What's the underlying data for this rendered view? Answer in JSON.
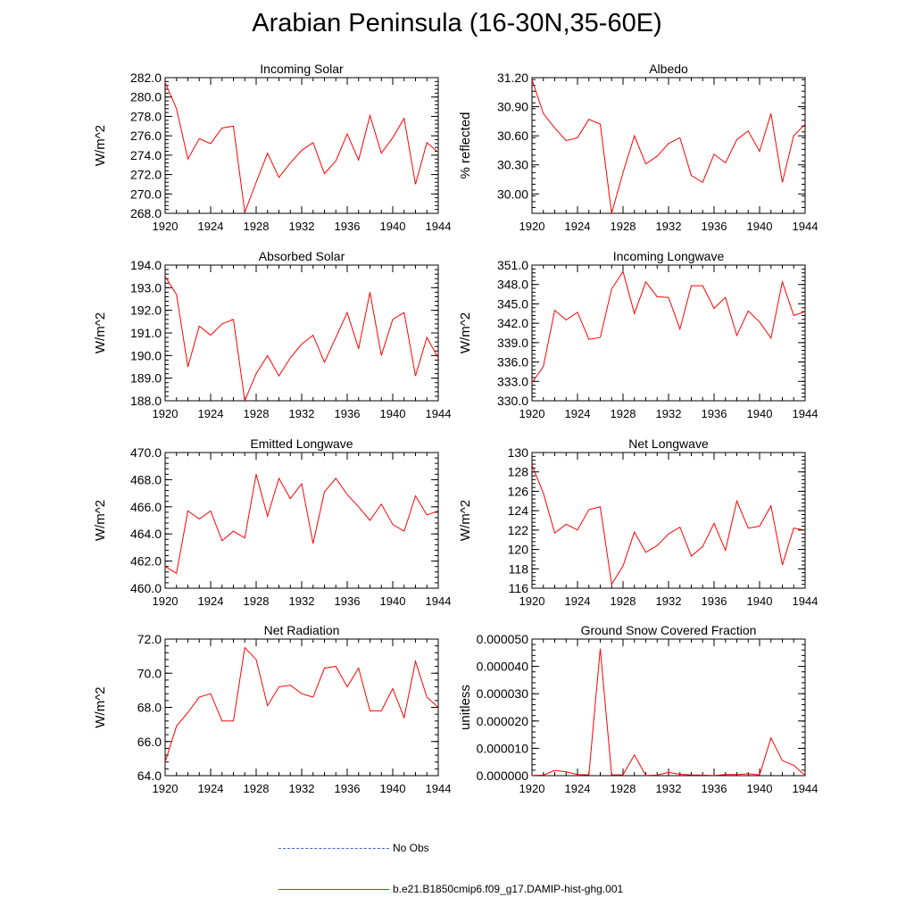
{
  "figure_title": "Arabian Peninsula (16-30N,35-60E)",
  "colors": {
    "series": "#ff0000",
    "obs": "#4a5fd0"
  },
  "legend": {
    "obs_label": "No Obs",
    "model_label": "b.e21.B1850cmip6.f09_g17.DAMIP-hist-ghg.001"
  },
  "chart_data": [
    {
      "type": "line",
      "title": "Incoming Solar",
      "ylabel": "W/m^2",
      "xlabel": "",
      "xlim": [
        1920,
        1944
      ],
      "ylim": [
        268,
        282
      ],
      "xticks": [
        "1920",
        "1924",
        "1928",
        "1932",
        "1936",
        "1940",
        "1944"
      ],
      "yticks": [
        "268.0",
        "270.0",
        "272.0",
        "274.0",
        "276.0",
        "278.0",
        "280.0",
        "282.0"
      ],
      "x": [
        1920,
        1921,
        1922,
        1923,
        1924,
        1925,
        1926,
        1927,
        1928,
        1929,
        1930,
        1931,
        1932,
        1933,
        1934,
        1935,
        1936,
        1937,
        1938,
        1939,
        1940,
        1941,
        1942,
        1943,
        1944
      ],
      "values": [
        281.5,
        278.8,
        273.6,
        275.7,
        275.2,
        276.8,
        277.0,
        268.1,
        271.2,
        274.2,
        271.7,
        273.2,
        274.5,
        275.3,
        272.1,
        273.4,
        276.2,
        273.5,
        278.1,
        274.2,
        275.8,
        277.8,
        271.0,
        275.3,
        274.3
      ]
    },
    {
      "type": "line",
      "title": "Albedo",
      "ylabel": "% reflected",
      "xlabel": "",
      "xlim": [
        1920,
        1944
      ],
      "ylim": [
        29.8,
        31.2
      ],
      "xticks": [
        "1920",
        "1924",
        "1928",
        "1932",
        "1936",
        "1940",
        "1944"
      ],
      "yticks": [
        "30.00",
        "30.30",
        "30.60",
        "30.90",
        "31.20"
      ],
      "x": [
        1920,
        1921,
        1922,
        1923,
        1924,
        1925,
        1926,
        1927,
        1928,
        1929,
        1930,
        1931,
        1932,
        1933,
        1934,
        1935,
        1936,
        1937,
        1938,
        1939,
        1940,
        1941,
        1942,
        1943,
        1944
      ],
      "values": [
        31.18,
        30.83,
        30.68,
        30.55,
        30.58,
        30.77,
        30.72,
        29.8,
        30.22,
        30.6,
        30.31,
        30.39,
        30.52,
        30.58,
        30.19,
        30.12,
        30.41,
        30.32,
        30.56,
        30.65,
        30.44,
        30.83,
        30.12,
        30.6,
        30.72
      ]
    },
    {
      "type": "line",
      "title": "Absorbed Solar",
      "ylabel": "W/m^2",
      "xlabel": "",
      "xlim": [
        1920,
        1944
      ],
      "ylim": [
        188,
        194
      ],
      "xticks": [
        "1920",
        "1924",
        "1928",
        "1932",
        "1936",
        "1940",
        "1944"
      ],
      "yticks": [
        "188.0",
        "189.0",
        "190.0",
        "191.0",
        "192.0",
        "193.0",
        "194.0"
      ],
      "x": [
        1920,
        1921,
        1922,
        1923,
        1924,
        1925,
        1926,
        1927,
        1928,
        1929,
        1930,
        1931,
        1932,
        1933,
        1934,
        1935,
        1936,
        1937,
        1938,
        1939,
        1940,
        1941,
        1942,
        1943,
        1944
      ],
      "values": [
        193.5,
        192.7,
        189.5,
        191.3,
        190.9,
        191.4,
        191.6,
        188.0,
        189.2,
        190.0,
        189.1,
        189.9,
        190.5,
        190.9,
        189.7,
        190.8,
        191.9,
        190.3,
        192.8,
        190.0,
        191.6,
        191.9,
        189.1,
        190.8,
        189.9
      ]
    },
    {
      "type": "line",
      "title": "Incoming Longwave",
      "ylabel": "W/m^2",
      "xlabel": "",
      "xlim": [
        1920,
        1944
      ],
      "ylim": [
        330,
        351
      ],
      "xticks": [
        "1920",
        "1924",
        "1928",
        "1932",
        "1936",
        "1940",
        "1944"
      ],
      "yticks": [
        "330.0",
        "333.0",
        "336.0",
        "339.0",
        "342.0",
        "345.0",
        "348.0",
        "351.0"
      ],
      "x": [
        1920,
        1921,
        1922,
        1923,
        1924,
        1925,
        1926,
        1927,
        1928,
        1929,
        1930,
        1931,
        1932,
        1933,
        1934,
        1935,
        1936,
        1937,
        1938,
        1939,
        1940,
        1941,
        1942,
        1943,
        1944
      ],
      "values": [
        332.8,
        335.3,
        344.0,
        342.5,
        343.7,
        339.5,
        339.8,
        347.3,
        350.0,
        343.5,
        348.4,
        346.1,
        346.0,
        341.1,
        347.8,
        347.8,
        344.3,
        346.0,
        340.1,
        343.9,
        342.2,
        339.7,
        348.4,
        343.2,
        343.8
      ]
    },
    {
      "type": "line",
      "title": "Emitted Longwave",
      "ylabel": "W/m^2",
      "xlabel": "",
      "xlim": [
        1920,
        1944
      ],
      "ylim": [
        460,
        470
      ],
      "xticks": [
        "1920",
        "1924",
        "1928",
        "1932",
        "1936",
        "1940",
        "1944"
      ],
      "yticks": [
        "460.0",
        "462.0",
        "464.0",
        "466.0",
        "468.0",
        "470.0"
      ],
      "x": [
        1920,
        1921,
        1922,
        1923,
        1924,
        1925,
        1926,
        1927,
        1928,
        1929,
        1930,
        1931,
        1932,
        1933,
        1934,
        1935,
        1936,
        1937,
        1938,
        1939,
        1940,
        1941,
        1942,
        1943,
        1944
      ],
      "values": [
        461.6,
        461.1,
        465.7,
        465.1,
        465.7,
        463.5,
        464.2,
        463.7,
        468.4,
        465.3,
        468.1,
        466.6,
        467.7,
        463.3,
        467.1,
        468.1,
        466.9,
        466.0,
        465.0,
        466.2,
        464.7,
        464.2,
        466.8,
        465.4,
        465.7
      ]
    },
    {
      "type": "line",
      "title": "Net Longwave",
      "ylabel": "W/m^2",
      "xlabel": "",
      "xlim": [
        1920,
        1944
      ],
      "ylim": [
        116,
        130
      ],
      "xticks": [
        "1920",
        "1924",
        "1928",
        "1932",
        "1936",
        "1940",
        "1944"
      ],
      "yticks": [
        "116",
        "118",
        "120",
        "122",
        "124",
        "126",
        "128",
        "130"
      ],
      "x": [
        1920,
        1921,
        1922,
        1923,
        1924,
        1925,
        1926,
        1927,
        1928,
        1929,
        1930,
        1931,
        1932,
        1933,
        1934,
        1935,
        1936,
        1937,
        1938,
        1939,
        1940,
        1941,
        1942,
        1943,
        1944
      ],
      "values": [
        128.7,
        125.8,
        121.7,
        122.6,
        122.0,
        124.1,
        124.4,
        116.4,
        118.3,
        121.8,
        119.7,
        120.4,
        121.6,
        122.3,
        119.3,
        120.3,
        122.7,
        119.9,
        125.0,
        122.2,
        122.4,
        124.5,
        118.4,
        122.2,
        122.0
      ]
    },
    {
      "type": "line",
      "title": "Net Radiation",
      "ylabel": "W/m^2",
      "xlabel": "",
      "xlim": [
        1920,
        1944
      ],
      "ylim": [
        64,
        72
      ],
      "xticks": [
        "1920",
        "1924",
        "1928",
        "1932",
        "1936",
        "1940",
        "1944"
      ],
      "yticks": [
        "64.0",
        "66.0",
        "68.0",
        "70.0",
        "72.0"
      ],
      "x": [
        1920,
        1921,
        1922,
        1923,
        1924,
        1925,
        1926,
        1927,
        1928,
        1929,
        1930,
        1931,
        1932,
        1933,
        1934,
        1935,
        1936,
        1937,
        1938,
        1939,
        1940,
        1941,
        1942,
        1943,
        1944
      ],
      "values": [
        64.8,
        66.9,
        67.7,
        68.6,
        68.8,
        67.2,
        67.2,
        71.5,
        70.8,
        68.1,
        69.2,
        69.3,
        68.8,
        68.6,
        70.3,
        70.4,
        69.2,
        70.3,
        67.8,
        67.8,
        69.1,
        67.4,
        70.7,
        68.6,
        68.0
      ]
    },
    {
      "type": "line",
      "title": "Ground Snow Covered Fraction",
      "ylabel": "unitless",
      "xlabel": "",
      "xlim": [
        1920,
        1944
      ],
      "ylim": [
        0,
        5e-05
      ],
      "xticks": [
        "1920",
        "1924",
        "1928",
        "1932",
        "1936",
        "1940",
        "1944"
      ],
      "yticks": [
        "0.000000",
        "0.000010",
        "0.000020",
        "0.000030",
        "0.000040",
        "0.000050"
      ],
      "x": [
        1920,
        1921,
        1922,
        1923,
        1924,
        1925,
        1926,
        1927,
        1928,
        1929,
        1930,
        1931,
        1932,
        1933,
        1934,
        1935,
        1936,
        1937,
        1938,
        1939,
        1940,
        1941,
        1942,
        1943,
        1944
      ],
      "values": [
        1e-07,
        2e-07,
        1.9e-06,
        1.4e-06,
        4e-07,
        3e-07,
        4.65e-05,
        3e-07,
        3e-07,
        7.6e-06,
        1e-07,
        2e-07,
        1.2e-06,
        5e-07,
        3e-07,
        2e-07,
        1e-07,
        4e-07,
        4e-07,
        7e-07,
        3e-07,
        1.38e-05,
        5.5e-06,
        3.8e-06,
        1e-07
      ]
    }
  ]
}
